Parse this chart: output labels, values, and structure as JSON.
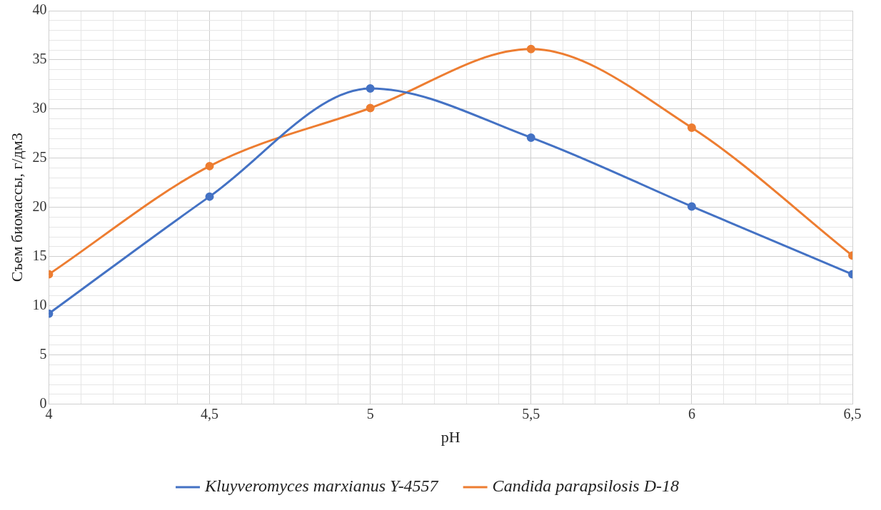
{
  "chart_data": {
    "type": "line",
    "xlabel": "pH",
    "ylabel": "Съем биомассы, г/дм3",
    "x": [
      4,
      4.5,
      5,
      5.5,
      6,
      6.5
    ],
    "series": [
      {
        "name": "Kluyveromyces marxianus Y-4557",
        "color": "#4472c4",
        "values": [
          9.2,
          21.1,
          32.1,
          27.1,
          20.1,
          13.2
        ]
      },
      {
        "name": "Candida parapsilosis D-18",
        "color": "#ed7d31",
        "values": [
          13.2,
          24.2,
          30.1,
          36.1,
          28.1,
          15.1
        ]
      }
    ],
    "xlim": [
      4,
      6.5
    ],
    "xticks": [
      4,
      {
        "value": 4.1,
        "label": null
      },
      {
        "value": 4.2,
        "label": null
      },
      {
        "value": 4.3,
        "label": null
      },
      {
        "value": 4.4,
        "label": null
      },
      {
        "value": 4.5,
        "label": "4,5"
      },
      {
        "value": 4.6,
        "label": null
      },
      {
        "value": 4.7,
        "label": null
      },
      {
        "value": 4.8,
        "label": null
      },
      {
        "value": 4.9,
        "label": null
      },
      5,
      {
        "value": 5.1,
        "label": null
      },
      {
        "value": 5.2,
        "label": null
      },
      {
        "value": 5.3,
        "label": null
      },
      {
        "value": 5.4,
        "label": null
      },
      {
        "value": 5.5,
        "label": "5,5"
      },
      {
        "value": 5.6,
        "label": null
      },
      {
        "value": 5.7,
        "label": null
      },
      {
        "value": 5.8,
        "label": null
      },
      {
        "value": 5.9,
        "label": null
      },
      6,
      {
        "value": 6.1,
        "label": null
      },
      {
        "value": 6.2,
        "label": null
      },
      {
        "value": 6.3,
        "label": null
      },
      {
        "value": 6.4,
        "label": null
      },
      {
        "value": 6.5,
        "label": "6,5"
      }
    ],
    "ylim": [
      0,
      40
    ],
    "yticks": [
      0,
      {
        "value": 1,
        "label": null
      },
      {
        "value": 2,
        "label": null
      },
      {
        "value": 3,
        "label": null
      },
      {
        "value": 4,
        "label": null
      },
      5,
      {
        "value": 6,
        "label": null
      },
      {
        "value": 7,
        "label": null
      },
      {
        "value": 8,
        "label": null
      },
      {
        "value": 9,
        "label": null
      },
      10,
      {
        "value": 11,
        "label": null
      },
      {
        "value": 12,
        "label": null
      },
      {
        "value": 13,
        "label": null
      },
      {
        "value": 14,
        "label": null
      },
      15,
      {
        "value": 16,
        "label": null
      },
      {
        "value": 17,
        "label": null
      },
      {
        "value": 18,
        "label": null
      },
      {
        "value": 19,
        "label": null
      },
      20,
      {
        "value": 21,
        "label": null
      },
      {
        "value": 22,
        "label": null
      },
      {
        "value": 23,
        "label": null
      },
      {
        "value": 24,
        "label": null
      },
      25,
      {
        "value": 26,
        "label": null
      },
      {
        "value": 27,
        "label": null
      },
      {
        "value": 28,
        "label": null
      },
      {
        "value": 29,
        "label": null
      },
      30,
      {
        "value": 31,
        "label": null
      },
      {
        "value": 32,
        "label": null
      },
      {
        "value": 33,
        "label": null
      },
      {
        "value": 34,
        "label": null
      },
      35,
      {
        "value": 36,
        "label": null
      },
      {
        "value": 37,
        "label": null
      },
      {
        "value": 38,
        "label": null
      },
      {
        "value": 39,
        "label": null
      },
      40
    ],
    "grid": true,
    "legend": "bottom",
    "marker": "circle",
    "line_style": "solid"
  }
}
